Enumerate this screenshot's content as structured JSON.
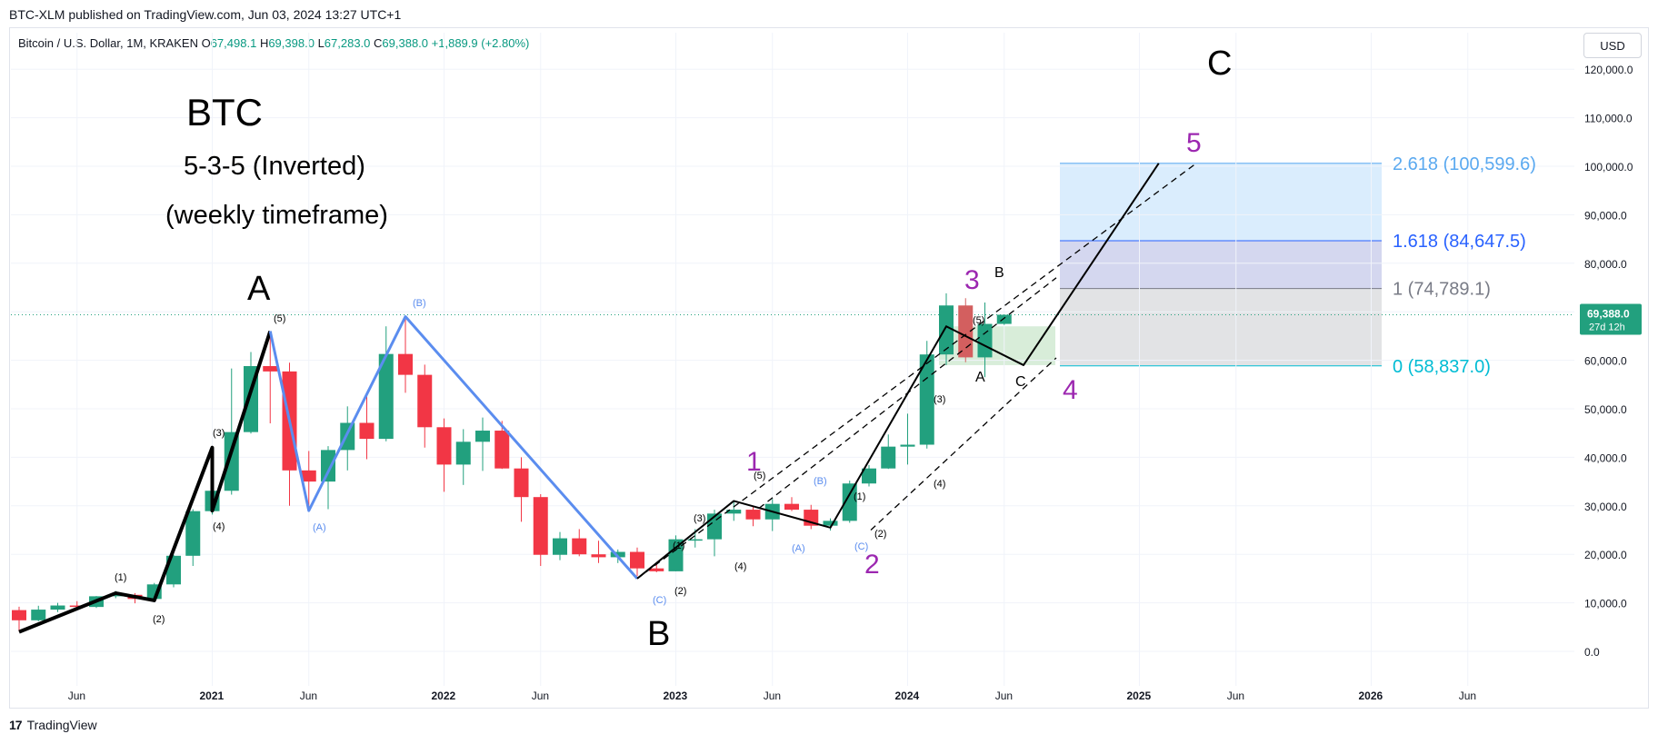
{
  "header": {
    "published_text": "BTC-XLM published on TradingView.com, Jun 03, 2024 13:27 UTC+1",
    "symbol": "Bitcoin / U.S. Dollar, 1M, KRAKEN",
    "open_label": "O",
    "open": "67,498.1",
    "high_label": "H",
    "high": "69,398.0",
    "low_label": "L",
    "low": "67,283.0",
    "close_label": "C",
    "close": "69,388.0",
    "change": "+1,889.9 (+2.80%)",
    "currency": "USD"
  },
  "footer": {
    "brand": "TradingView",
    "logo": "17"
  },
  "price_label": {
    "value": "69,388.0",
    "countdown": "27d 12h"
  },
  "colors": {
    "up": "#22a07e",
    "down": "#f23645",
    "blue_wave": "#5b8def",
    "purple": "#9c27b0",
    "fib_top": "#5aa9f0",
    "fib_mid": "#2962ff",
    "fib_low": "#787b86",
    "fib_zero": "#00bcd4"
  },
  "annotations": {
    "title": "BTC",
    "line1": "5-3-5 (Inverted)",
    "line2": "(weekly timeframe)",
    "wave_A": "A",
    "wave_B": "B",
    "wave_C": "C",
    "sub": [
      "(1)",
      "(2)",
      "(3)",
      "(4)",
      "(5)",
      "(A)",
      "(B)",
      "(C)",
      "(1)",
      "(2)",
      "(3)",
      "(4)",
      "(5)",
      "(A)",
      "(B)",
      "(C)",
      "(1)",
      "(2)",
      "(3)",
      "(4)",
      "(5)",
      "A",
      "B",
      "C"
    ],
    "purple": [
      "1",
      "2",
      "3",
      "4",
      "5"
    ]
  },
  "chart_data": {
    "type": "candlestick",
    "symbol": "Bitcoin / U.S. Dollar",
    "interval": "1M",
    "exchange": "KRAKEN",
    "y_axis": {
      "ticks": [
        0,
        10000,
        20000,
        30000,
        40000,
        50000,
        60000,
        70000,
        80000,
        90000,
        100000,
        110000,
        120000
      ],
      "tick_labels": [
        "0.0",
        "10,000.0",
        "20,000.0",
        "30,000.0",
        "40,000.0",
        "50,000.0",
        "60,000.0",
        "70,000.0",
        "80,000.0",
        "90,000.0",
        "100,000.0",
        "110,000.0",
        "120,000.0"
      ],
      "range": [
        -3000,
        125000
      ]
    },
    "x_axis": {
      "tick_labels": [
        "Jun",
        "2021",
        "Jun",
        "2022",
        "Jun",
        "2023",
        "Jun",
        "2024",
        "Jun",
        "2025",
        "Jun",
        "2026",
        "Jun"
      ]
    },
    "last_price": 69388.0,
    "candles": [
      {
        "date": "2020-03",
        "o": 8500,
        "h": 9200,
        "l": 4100,
        "c": 6400
      },
      {
        "date": "2020-04",
        "o": 6400,
        "h": 9400,
        "l": 6200,
        "c": 8600
      },
      {
        "date": "2020-05",
        "o": 8600,
        "h": 10000,
        "l": 8100,
        "c": 9450
      },
      {
        "date": "2020-06",
        "o": 9450,
        "h": 10350,
        "l": 8900,
        "c": 9150
      },
      {
        "date": "2020-07",
        "o": 9150,
        "h": 11400,
        "l": 8950,
        "c": 11350
      },
      {
        "date": "2020-08",
        "o": 11350,
        "h": 12450,
        "l": 10950,
        "c": 11650
      },
      {
        "date": "2020-09",
        "o": 11650,
        "h": 12000,
        "l": 9900,
        "c": 10800
      },
      {
        "date": "2020-10",
        "o": 10800,
        "h": 14100,
        "l": 10400,
        "c": 13800
      },
      {
        "date": "2020-11",
        "o": 13800,
        "h": 19900,
        "l": 13200,
        "c": 19700
      },
      {
        "date": "2020-12",
        "o": 19700,
        "h": 29300,
        "l": 17600,
        "c": 28900
      },
      {
        "date": "2021-01",
        "o": 28900,
        "h": 41900,
        "l": 28200,
        "c": 33100
      },
      {
        "date": "2021-02",
        "o": 33100,
        "h": 58300,
        "l": 32300,
        "c": 45200
      },
      {
        "date": "2021-03",
        "o": 45200,
        "h": 61700,
        "l": 44900,
        "c": 58800
      },
      {
        "date": "2021-04",
        "o": 58800,
        "h": 64900,
        "l": 47000,
        "c": 57700
      },
      {
        "date": "2021-05",
        "o": 57700,
        "h": 59500,
        "l": 30000,
        "c": 37300
      },
      {
        "date": "2021-06",
        "o": 37300,
        "h": 41300,
        "l": 28800,
        "c": 35000
      },
      {
        "date": "2021-07",
        "o": 35000,
        "h": 42300,
        "l": 29300,
        "c": 41500
      },
      {
        "date": "2021-08",
        "o": 41500,
        "h": 50500,
        "l": 37300,
        "c": 47100
      },
      {
        "date": "2021-09",
        "o": 47100,
        "h": 52900,
        "l": 39600,
        "c": 43800
      },
      {
        "date": "2021-10",
        "o": 43800,
        "h": 67000,
        "l": 43300,
        "c": 61300
      },
      {
        "date": "2021-11",
        "o": 61300,
        "h": 69000,
        "l": 53300,
        "c": 57000
      },
      {
        "date": "2021-12",
        "o": 57000,
        "h": 59100,
        "l": 42000,
        "c": 46200
      },
      {
        "date": "2022-01",
        "o": 46200,
        "h": 48000,
        "l": 32900,
        "c": 38500
      },
      {
        "date": "2022-02",
        "o": 38500,
        "h": 45800,
        "l": 34300,
        "c": 43200
      },
      {
        "date": "2022-03",
        "o": 43200,
        "h": 48200,
        "l": 37200,
        "c": 45500
      },
      {
        "date": "2022-04",
        "o": 45500,
        "h": 47500,
        "l": 37600,
        "c": 37700
      },
      {
        "date": "2022-05",
        "o": 37700,
        "h": 40000,
        "l": 26700,
        "c": 31800
      },
      {
        "date": "2022-06",
        "o": 31800,
        "h": 32400,
        "l": 17600,
        "c": 19900
      },
      {
        "date": "2022-07",
        "o": 19900,
        "h": 24600,
        "l": 18800,
        "c": 23300
      },
      {
        "date": "2022-08",
        "o": 23300,
        "h": 25200,
        "l": 19600,
        "c": 20000
      },
      {
        "date": "2022-09",
        "o": 20000,
        "h": 22800,
        "l": 18200,
        "c": 19400
      },
      {
        "date": "2022-10",
        "o": 19400,
        "h": 21000,
        "l": 18200,
        "c": 20500
      },
      {
        "date": "2022-11",
        "o": 20500,
        "h": 21400,
        "l": 15500,
        "c": 17100
      },
      {
        "date": "2022-12",
        "o": 17100,
        "h": 18400,
        "l": 16300,
        "c": 16500
      },
      {
        "date": "2023-01",
        "o": 16500,
        "h": 23900,
        "l": 16500,
        "c": 23100
      },
      {
        "date": "2023-02",
        "o": 23100,
        "h": 25200,
        "l": 21400,
        "c": 23100
      },
      {
        "date": "2023-03",
        "o": 23100,
        "h": 29200,
        "l": 19600,
        "c": 28400
      },
      {
        "date": "2023-04",
        "o": 28400,
        "h": 31000,
        "l": 26900,
        "c": 29200
      },
      {
        "date": "2023-05",
        "o": 29200,
        "h": 29800,
        "l": 25800,
        "c": 27200
      },
      {
        "date": "2023-06",
        "o": 27200,
        "h": 31400,
        "l": 24800,
        "c": 30400
      },
      {
        "date": "2023-07",
        "o": 30400,
        "h": 31800,
        "l": 28900,
        "c": 29200
      },
      {
        "date": "2023-08",
        "o": 29200,
        "h": 30200,
        "l": 25200,
        "c": 25900
      },
      {
        "date": "2023-09",
        "o": 25900,
        "h": 27400,
        "l": 24900,
        "c": 26900
      },
      {
        "date": "2023-10",
        "o": 26900,
        "h": 35200,
        "l": 26500,
        "c": 34600
      },
      {
        "date": "2023-11",
        "o": 34600,
        "h": 38400,
        "l": 34000,
        "c": 37700
      },
      {
        "date": "2023-12",
        "o": 37700,
        "h": 44700,
        "l": 37600,
        "c": 42200
      },
      {
        "date": "2024-01",
        "o": 42200,
        "h": 49000,
        "l": 38500,
        "c": 42600
      },
      {
        "date": "2024-02",
        "o": 42600,
        "h": 64000,
        "l": 41800,
        "c": 61200
      },
      {
        "date": "2024-03",
        "o": 61200,
        "h": 73800,
        "l": 59000,
        "c": 71300
      },
      {
        "date": "2024-04",
        "o": 71300,
        "h": 72800,
        "l": 59600,
        "c": 60600
      },
      {
        "date": "2024-05",
        "o": 60600,
        "h": 71900,
        "l": 56500,
        "c": 67500
      },
      {
        "date": "2024-06",
        "o": 67500,
        "h": 69400,
        "l": 67300,
        "c": 69388
      }
    ],
    "fibonacci": {
      "levels": [
        {
          "ratio": "0",
          "price": 58837.0,
          "label": "0 (58,837.0)"
        },
        {
          "ratio": "1",
          "price": 74789.1,
          "label": "1 (74,789.1)"
        },
        {
          "ratio": "1.618",
          "price": 84647.5,
          "label": "1.618 (84,647.5)"
        },
        {
          "ratio": "2.618",
          "price": 100599.6,
          "label": "2.618 (100,599.6)"
        }
      ]
    },
    "wave_paths": {
      "black_primary": [
        [
          "2020-03",
          4000
        ],
        [
          "2020-08",
          12000
        ],
        [
          "2020-10",
          10500
        ],
        [
          "2021-01",
          42000
        ],
        [
          "2021-01",
          29000
        ],
        [
          "2021-04",
          66000
        ]
      ],
      "blue_abc": [
        [
          "2021-04",
          66000
        ],
        [
          "2021-06",
          29000
        ],
        [
          "2021-11",
          69000
        ],
        [
          "2022-11",
          15000
        ]
      ],
      "black_wave_two": [
        [
          "2022-11",
          15000
        ],
        [
          "2023-04",
          31000
        ],
        [
          "2023-09",
          25500
        ],
        [
          "2024-03",
          67000
        ],
        [
          "2024-07",
          59000
        ],
        [
          "2025-02",
          100600
        ]
      ]
    }
  }
}
